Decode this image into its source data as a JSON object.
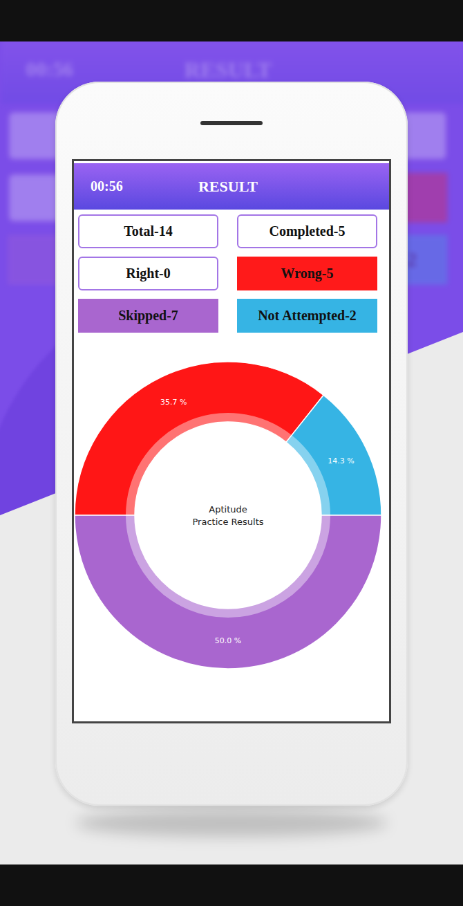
{
  "screen": {
    "timer": "00:56",
    "title": "RESULT",
    "stats": [
      {
        "text": "Total-14"
      },
      {
        "text": "Completed-5"
      },
      {
        "text": "Right-0"
      },
      {
        "text": "Wrong-5",
        "color": "#ff1a1a"
      },
      {
        "text": "Skipped-7",
        "color": "#a966cf"
      },
      {
        "text": "Not Attempted-2",
        "color": "#36b4e4"
      }
    ]
  },
  "chart_data": {
    "type": "donut",
    "title": "Aptitude\nPractice Results",
    "categories": [
      "Wrong",
      "Not Attempted",
      "Skipped"
    ],
    "values": [
      35.7,
      14.3,
      50.0
    ],
    "value_labels": [
      "35.7 %",
      "14.3 %",
      "50.0 %"
    ],
    "colors": [
      "#ff1616",
      "#36b4e4",
      "#a966cf"
    ],
    "data_labels": true
  }
}
